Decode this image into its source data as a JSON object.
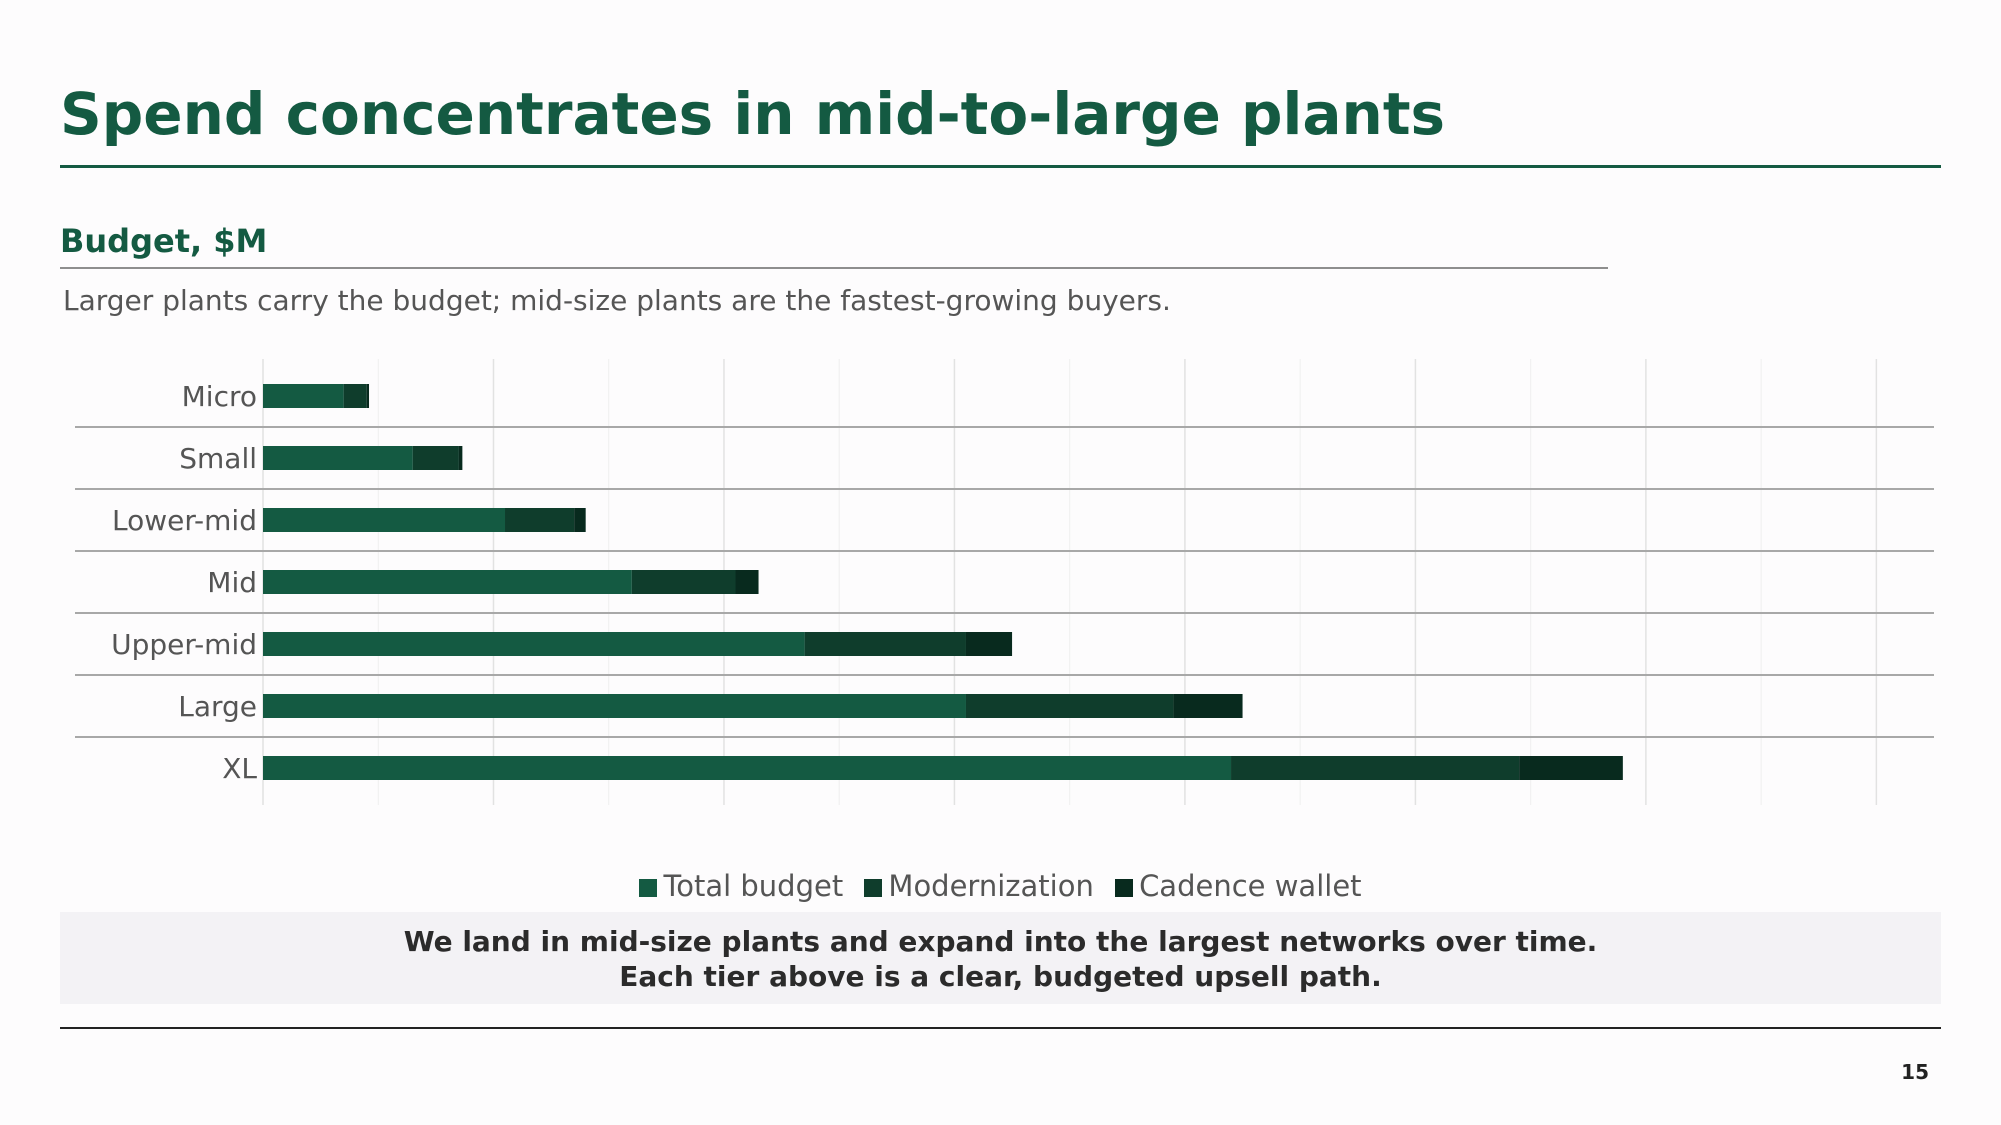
{
  "slide": {
    "title": "Spend concentrates in mid-to-large plants",
    "section_label": "Budget, $M",
    "subtitle": "Larger plants carry the budget; mid-size plants are the fastest-growing buyers.",
    "callout_line1": "We land in mid-size plants and expand into the largest networks over time.",
    "callout_line2": "Each tier above is a clear, budgeted upsell path.",
    "page_number": "15"
  },
  "chart_data": {
    "type": "bar",
    "orientation": "horizontal",
    "stacked": true,
    "categories": [
      "Micro",
      "Small",
      "Lower-mid",
      "Mid",
      "Upper-mid",
      "Large",
      "XL"
    ],
    "series": [
      {
        "name": "Total budget",
        "color": "#145a42",
        "values": [
          0.7,
          1.3,
          2.1,
          3.2,
          4.7,
          6.1,
          8.4
        ]
      },
      {
        "name": "Modernization",
        "color": "#0f3d2c",
        "values": [
          0.2,
          0.4,
          0.6,
          0.9,
          1.4,
          1.8,
          2.5
        ]
      },
      {
        "name": "Cadence wallet",
        "color": "#082a1e",
        "values": [
          0.02,
          0.03,
          0.1,
          0.2,
          0.4,
          0.6,
          0.9
        ]
      }
    ],
    "xlim": [
      0,
      14.5
    ],
    "xticks": [
      "0",
      "2",
      "4",
      "6",
      "8",
      "10",
      "12",
      "14"
    ],
    "xtick_values": [
      0,
      2,
      4,
      6,
      8,
      10,
      12,
      14
    ],
    "grid": true,
    "legend_position": "bottom"
  }
}
